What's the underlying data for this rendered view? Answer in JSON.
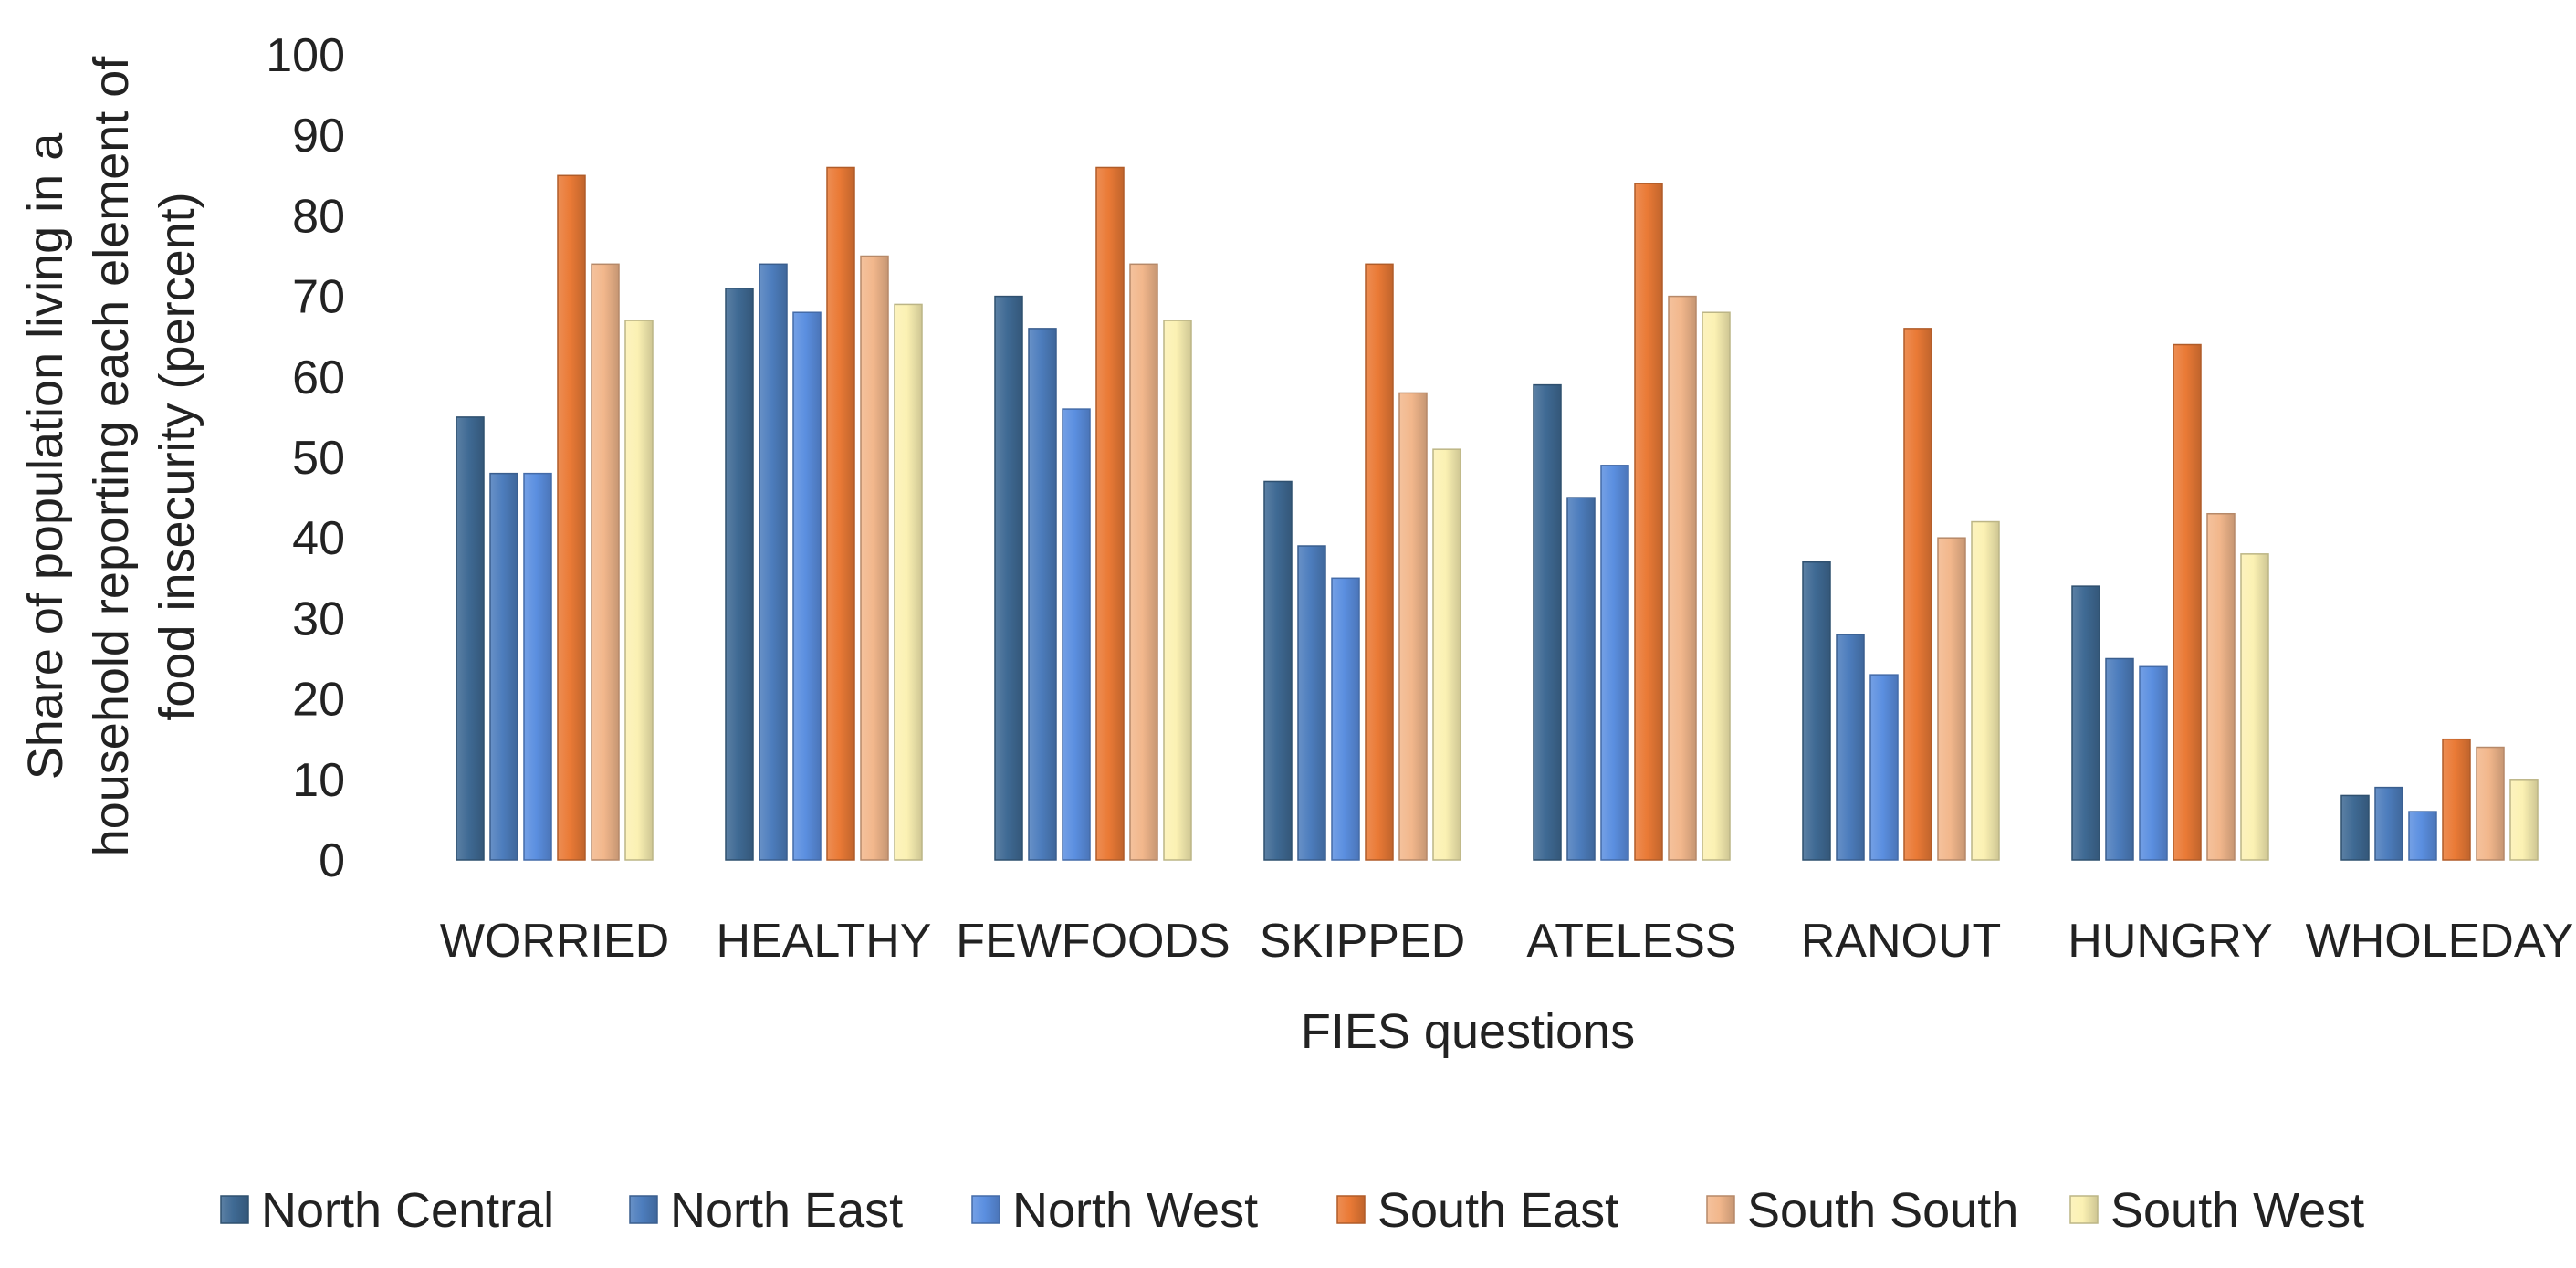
{
  "chart_data": {
    "type": "bar",
    "title": "",
    "xlabel": "FIES questions",
    "ylabel_lines": [
      "Share of population living in a",
      "household reporting each element of",
      "food insecurity (percent)"
    ],
    "ylim": [
      0,
      100
    ],
    "yticks": [
      0,
      10,
      20,
      30,
      40,
      50,
      60,
      70,
      80,
      90,
      100
    ],
    "grid": false,
    "legend_position": "bottom",
    "categories": [
      "WORRIED",
      "HEALTHY",
      "FEWFOODS",
      "SKIPPED",
      "ATELESS",
      "RANOUT",
      "HUNGRY",
      "WHOLEDAY"
    ],
    "series": [
      {
        "name": "North Central",
        "color": "#3f6a94",
        "values": [
          55,
          71,
          70,
          47,
          59,
          37,
          34,
          8
        ]
      },
      {
        "name": "North East",
        "color": "#4d7dbd",
        "values": [
          48,
          74,
          66,
          39,
          45,
          28,
          25,
          9
        ]
      },
      {
        "name": "North West",
        "color": "#5b8fe0",
        "values": [
          48,
          68,
          56,
          35,
          49,
          23,
          24,
          6
        ]
      },
      {
        "name": "South East",
        "color": "#ea7a36",
        "values": [
          85,
          86,
          86,
          74,
          84,
          66,
          64,
          15
        ]
      },
      {
        "name": "South South",
        "color": "#f2b78c",
        "values": [
          74,
          75,
          74,
          58,
          70,
          40,
          43,
          14
        ]
      },
      {
        "name": "South West",
        "color": "#fbf1b3",
        "values": [
          67,
          69,
          67,
          51,
          68,
          42,
          38,
          10
        ]
      }
    ]
  }
}
